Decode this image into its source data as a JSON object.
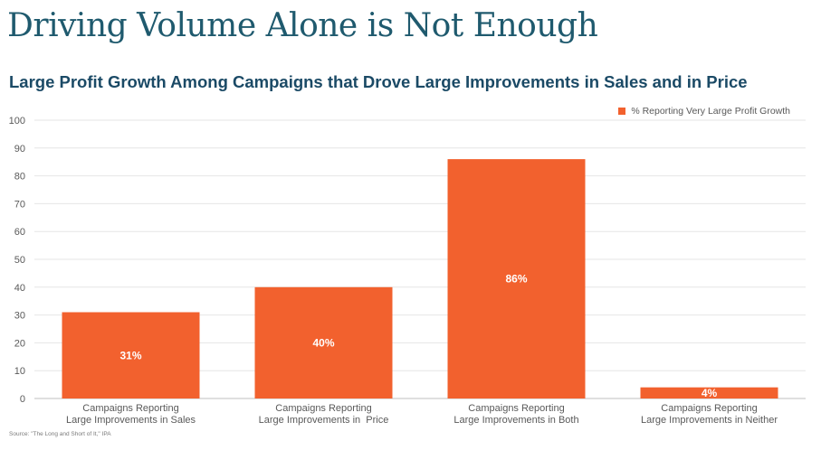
{
  "header": {
    "title": "Driving Volume Alone is Not Enough",
    "subtitle": "Large Profit Growth Among Campaigns that Drove Large Improvements in Sales and in Price"
  },
  "footer": {
    "source": "Source: \"The Long and Short of It,\" IPA"
  },
  "colors": {
    "bar": "#f2612e",
    "title": "#1f5a6e",
    "subtitle": "#1b4a66",
    "grid": "#e6e6e6",
    "text": "#595959"
  },
  "chart_data": {
    "type": "bar",
    "categories": [
      [
        "Campaigns Reporting",
        "Large Improvements in Sales"
      ],
      [
        "Campaigns Reporting",
        "Large Improvements in  Price"
      ],
      [
        "Campaigns Reporting",
        "Large Improvements in Both"
      ],
      [
        "Campaigns Reporting",
        "Large Improvements in Neither"
      ]
    ],
    "series": [
      {
        "name": "% Reporting Very Large Profit Growth",
        "values": [
          31,
          40,
          86,
          4
        ],
        "data_labels": [
          "31%",
          "40%",
          "86%",
          "4%"
        ]
      }
    ],
    "ylim": [
      0,
      100
    ],
    "yticks": [
      0,
      10,
      20,
      30,
      40,
      50,
      60,
      70,
      80,
      90,
      100
    ],
    "grid": true,
    "legend": "top-right"
  }
}
